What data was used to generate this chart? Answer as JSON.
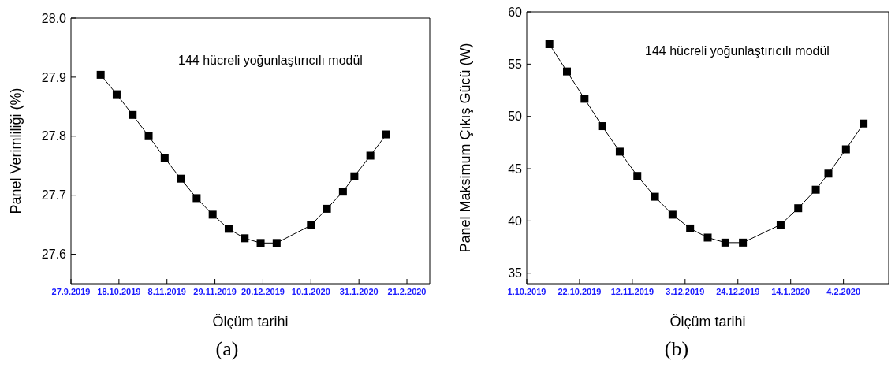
{
  "chart_data": [
    {
      "type": "line",
      "xlabel": "Ölçüm tarihi",
      "ylabel": "Panel Verimliliği (%)",
      "annotations": [
        "144 hücreli yoğunlaştırıcılı modül",
        "(a)"
      ],
      "marker": "square",
      "line_style": "solid",
      "grid": false,
      "legend": false,
      "x": [
        "2019-10-10",
        "2019-10-17",
        "2019-10-24",
        "2019-10-31",
        "2019-11-07",
        "2019-11-14",
        "2019-11-21",
        "2019-11-28",
        "2019-12-05",
        "2019-12-12",
        "2019-12-19",
        "2019-12-26",
        "2020-01-10",
        "2020-01-17",
        "2020-01-24",
        "2020-01-29",
        "2020-02-05",
        "2020-02-12"
      ],
      "series": [
        {
          "color": "#000000",
          "values": [
            27.904,
            27.871,
            27.836,
            27.8,
            27.763,
            27.728,
            27.695,
            27.667,
            27.643,
            27.627,
            27.619,
            27.619,
            27.649,
            27.677,
            27.706,
            27.732,
            27.767,
            27.803
          ]
        }
      ],
      "xlim": [
        "2019-09-27",
        "2020-03-02"
      ],
      "xticks": [
        {
          "value": "2019-09-27",
          "label": "27.9.2019"
        },
        {
          "value": "2019-10-18",
          "label": "18.10.2019"
        },
        {
          "value": "2019-11-08",
          "label": "8.11.2019"
        },
        {
          "value": "2019-11-29",
          "label": "29.11.2019"
        },
        {
          "value": "2019-12-20",
          "label": "20.12.2019"
        },
        {
          "value": "2020-01-10",
          "label": "10.1.2020"
        },
        {
          "value": "2020-01-31",
          "label": "31.1.2020"
        },
        {
          "value": "2020-02-21",
          "label": "21.2.2020"
        }
      ],
      "ylim": [
        27.55,
        28.0
      ],
      "yticks": [
        27.6,
        27.7,
        27.8,
        27.9,
        {
          "value": 28.0,
          "label": "28.0"
        }
      ]
    },
    {
      "type": "line",
      "xlabel": "Ölçüm tarihi",
      "ylabel": "Panel Maksimum Çıkış Gücü (W)",
      "annotations": [
        "144 hücreli yoğunlaştırıcılı modül",
        "(b)"
      ],
      "marker": "square",
      "line_style": "solid",
      "grid": false,
      "legend": false,
      "x": [
        "2019-10-10",
        "2019-10-17",
        "2019-10-24",
        "2019-10-31",
        "2019-11-07",
        "2019-11-14",
        "2019-11-21",
        "2019-11-28",
        "2019-12-05",
        "2019-12-12",
        "2019-12-19",
        "2019-12-26",
        "2020-01-10",
        "2020-01-17",
        "2020-01-24",
        "2020-01-29",
        "2020-02-05",
        "2020-02-12"
      ],
      "series": [
        {
          "color": "#000000",
          "values": [
            56.91,
            54.3,
            51.68,
            49.07,
            46.63,
            44.31,
            42.32,
            40.6,
            39.28,
            38.41,
            37.93,
            37.93,
            39.65,
            41.22,
            42.99,
            44.53,
            46.85,
            49.32
          ]
        }
      ],
      "xlim": [
        "2019-10-01",
        "2020-02-22"
      ],
      "xticks": [
        {
          "value": "2019-10-01",
          "label": "1.10.2019"
        },
        {
          "value": "2019-10-22",
          "label": "22.10.2019"
        },
        {
          "value": "2019-11-12",
          "label": "12.11.2019"
        },
        {
          "value": "2019-12-03",
          "label": "3.12.2019"
        },
        {
          "value": "2019-12-24",
          "label": "24.12.2019"
        },
        {
          "value": "2020-01-14",
          "label": "14.1.2020"
        },
        {
          "value": "2020-02-04",
          "label": "4.2.2020"
        }
      ],
      "ylim": [
        34,
        60
      ],
      "yticks": [
        35,
        40,
        45,
        50,
        55,
        60
      ]
    }
  ]
}
